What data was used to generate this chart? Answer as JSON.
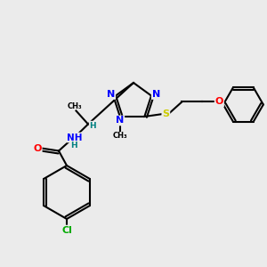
{
  "bg_color": "#ebebeb",
  "atom_colors": {
    "N": "#0000ff",
    "O": "#ff0000",
    "S": "#cccc00",
    "Cl": "#00aa00",
    "C": "#000000",
    "H": "#008080"
  },
  "fig_size": [
    3.0,
    3.0
  ],
  "dpi": 100,
  "xlim": [
    0,
    10
  ],
  "ylim": [
    0,
    10
  ]
}
